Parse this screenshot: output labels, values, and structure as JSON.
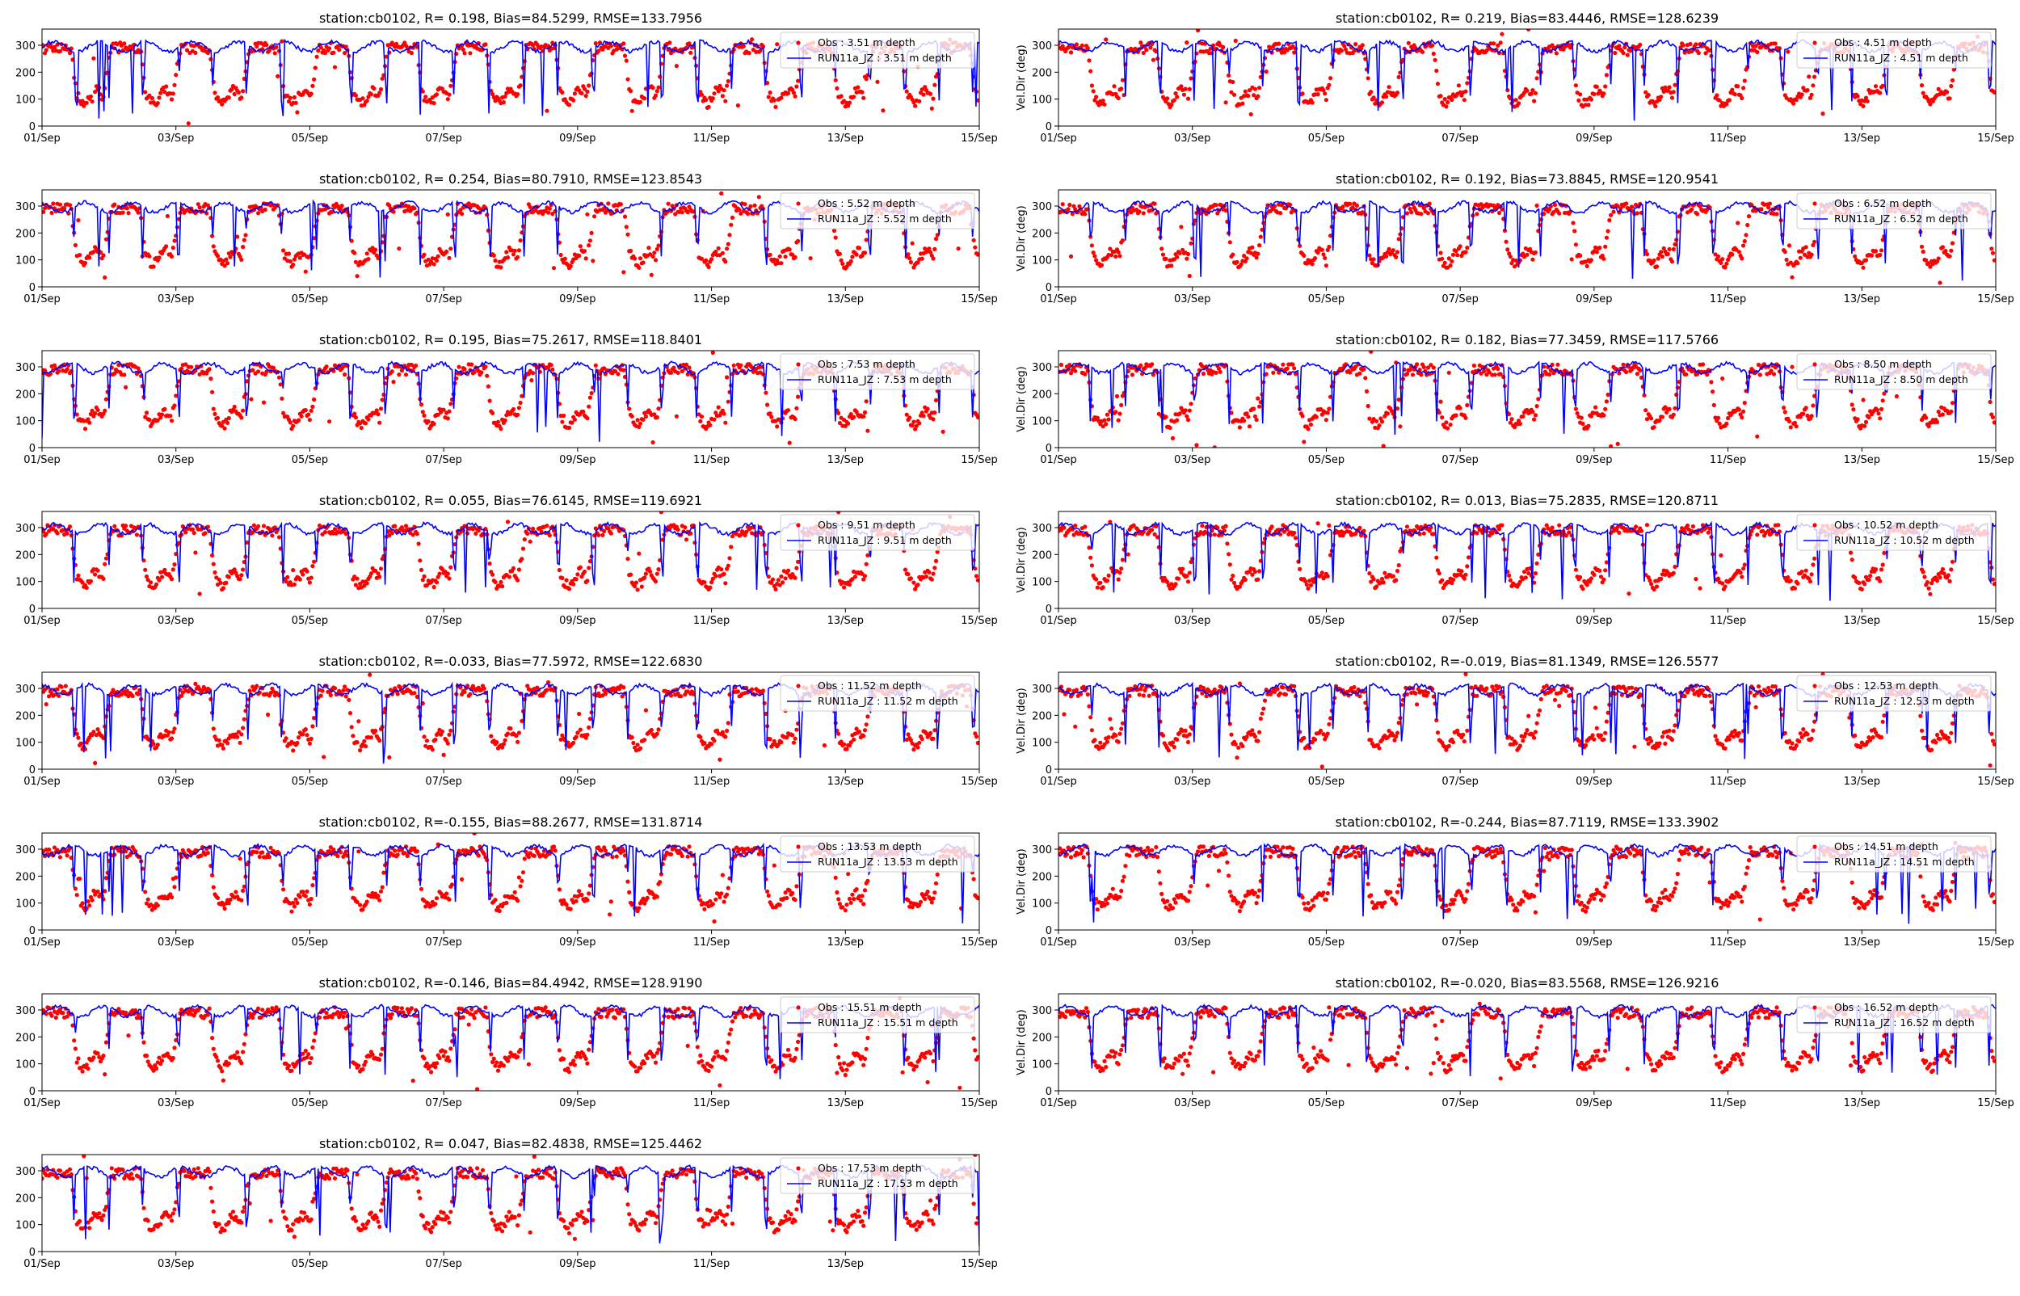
{
  "figure": {
    "station": "cb0102",
    "x_tick_labels": [
      "01/Sep",
      "03/Sep",
      "05/Sep",
      "07/Sep",
      "09/Sep",
      "11/Sep",
      "13/Sep",
      "15/Sep"
    ],
    "colors": {
      "obs": "#ff0000",
      "model": "#0000ff"
    }
  },
  "chart_data": [
    {
      "type": "scatter",
      "title": "station:cb0102, R= 0.198, Bias=84.5299, RMSE=133.7956",
      "ylabel": "",
      "xlim": [
        "01/Sep",
        "15/Sep"
      ],
      "ylim": [
        0,
        360
      ],
      "yticks": [
        0,
        100,
        200,
        300
      ],
      "legend": "top-right",
      "series": [
        {
          "name": "Obs : 3.51 m depth",
          "style": "points"
        },
        {
          "name": "RUN11a_JZ : 3.51 m depth",
          "style": "line"
        }
      ]
    },
    {
      "type": "scatter",
      "title": "station:cb0102, R= 0.219, Bias=83.4446, RMSE=128.6239",
      "ylabel": "Vel.Dir (deg)",
      "xlim": [
        "01/Sep",
        "15/Sep"
      ],
      "ylim": [
        0,
        360
      ],
      "yticks": [
        0,
        100,
        200,
        300
      ],
      "legend": "top-right",
      "series": [
        {
          "name": "Obs : 4.51 m depth",
          "style": "points"
        },
        {
          "name": "RUN11a_JZ : 4.51 m depth",
          "style": "line"
        }
      ]
    },
    {
      "type": "scatter",
      "title": "station:cb0102, R= 0.254, Bias=80.7910, RMSE=123.8543",
      "ylabel": "",
      "xlim": [
        "01/Sep",
        "15/Sep"
      ],
      "ylim": [
        0,
        360
      ],
      "yticks": [
        0,
        100,
        200,
        300
      ],
      "legend": "top-right",
      "series": [
        {
          "name": "Obs : 5.52 m depth",
          "style": "points"
        },
        {
          "name": "RUN11a_JZ : 5.52 m depth",
          "style": "line"
        }
      ]
    },
    {
      "type": "scatter",
      "title": "station:cb0102, R= 0.192, Bias=73.8845, RMSE=120.9541",
      "ylabel": "Vel.Dir (deg)",
      "xlim": [
        "01/Sep",
        "15/Sep"
      ],
      "ylim": [
        0,
        360
      ],
      "yticks": [
        0,
        100,
        200,
        300
      ],
      "legend": "top-right",
      "series": [
        {
          "name": "Obs : 6.52 m depth",
          "style": "points"
        },
        {
          "name": "RUN11a_JZ : 6.52 m depth",
          "style": "line"
        }
      ]
    },
    {
      "type": "scatter",
      "title": "station:cb0102, R= 0.195, Bias=75.2617, RMSE=118.8401",
      "ylabel": "",
      "xlim": [
        "01/Sep",
        "15/Sep"
      ],
      "ylim": [
        0,
        360
      ],
      "yticks": [
        0,
        100,
        200,
        300
      ],
      "legend": "top-right",
      "series": [
        {
          "name": "Obs : 7.53 m depth",
          "style": "points"
        },
        {
          "name": "RUN11a_JZ : 7.53 m depth",
          "style": "line"
        }
      ]
    },
    {
      "type": "scatter",
      "title": "station:cb0102, R= 0.182, Bias=77.3459, RMSE=117.5766",
      "ylabel": "Vel.Dir (deg)",
      "xlim": [
        "01/Sep",
        "15/Sep"
      ],
      "ylim": [
        0,
        360
      ],
      "yticks": [
        0,
        100,
        200,
        300
      ],
      "legend": "top-right",
      "series": [
        {
          "name": "Obs : 8.50 m depth",
          "style": "points"
        },
        {
          "name": "RUN11a_JZ : 8.50 m depth",
          "style": "line"
        }
      ]
    },
    {
      "type": "scatter",
      "title": "station:cb0102, R= 0.055, Bias=76.6145, RMSE=119.6921",
      "ylabel": "",
      "xlim": [
        "01/Sep",
        "15/Sep"
      ],
      "ylim": [
        0,
        360
      ],
      "yticks": [
        0,
        100,
        200,
        300
      ],
      "legend": "top-right",
      "series": [
        {
          "name": "Obs : 9.51 m depth",
          "style": "points"
        },
        {
          "name": "RUN11a_JZ : 9.51 m depth",
          "style": "line"
        }
      ]
    },
    {
      "type": "scatter",
      "title": "station:cb0102, R= 0.013, Bias=75.2835, RMSE=120.8711",
      "ylabel": "Vel.Dir (deg)",
      "xlim": [
        "01/Sep",
        "15/Sep"
      ],
      "ylim": [
        0,
        360
      ],
      "yticks": [
        0,
        100,
        200,
        300
      ],
      "legend": "top-right",
      "series": [
        {
          "name": "Obs : 10.52 m depth",
          "style": "points"
        },
        {
          "name": "RUN11a_JZ : 10.52 m depth",
          "style": "line"
        }
      ]
    },
    {
      "type": "scatter",
      "title": "station:cb0102, R=-0.033, Bias=77.5972, RMSE=122.6830",
      "ylabel": "",
      "xlim": [
        "01/Sep",
        "15/Sep"
      ],
      "ylim": [
        0,
        360
      ],
      "yticks": [
        0,
        100,
        200,
        300
      ],
      "legend": "top-right",
      "series": [
        {
          "name": "Obs : 11.52 m depth",
          "style": "points"
        },
        {
          "name": "RUN11a_JZ : 11.52 m depth",
          "style": "line"
        }
      ]
    },
    {
      "type": "scatter",
      "title": "station:cb0102, R=-0.019, Bias=81.1349, RMSE=126.5577",
      "ylabel": "Vel.Dir (deg)",
      "xlim": [
        "01/Sep",
        "15/Sep"
      ],
      "ylim": [
        0,
        360
      ],
      "yticks": [
        0,
        100,
        200,
        300
      ],
      "legend": "top-right",
      "series": [
        {
          "name": "Obs : 12.53 m depth",
          "style": "points"
        },
        {
          "name": "RUN11a_JZ : 12.53 m depth",
          "style": "line"
        }
      ]
    },
    {
      "type": "scatter",
      "title": "station:cb0102, R=-0.155, Bias=88.2677, RMSE=131.8714",
      "ylabel": "",
      "xlim": [
        "01/Sep",
        "15/Sep"
      ],
      "ylim": [
        0,
        360
      ],
      "yticks": [
        0,
        100,
        200,
        300
      ],
      "legend": "top-right",
      "series": [
        {
          "name": "Obs : 13.53 m depth",
          "style": "points"
        },
        {
          "name": "RUN11a_JZ : 13.53 m depth",
          "style": "line"
        }
      ]
    },
    {
      "type": "scatter",
      "title": "station:cb0102, R=-0.244, Bias=87.7119, RMSE=133.3902",
      "ylabel": "Vel.Dir (deg)",
      "xlim": [
        "01/Sep",
        "15/Sep"
      ],
      "ylim": [
        0,
        360
      ],
      "yticks": [
        0,
        100,
        200,
        300
      ],
      "legend": "top-right",
      "series": [
        {
          "name": "Obs : 14.51 m depth",
          "style": "points"
        },
        {
          "name": "RUN11a_JZ : 14.51 m depth",
          "style": "line"
        }
      ]
    },
    {
      "type": "scatter",
      "title": "station:cb0102, R=-0.146, Bias=84.4942, RMSE=128.9190",
      "ylabel": "",
      "xlim": [
        "01/Sep",
        "15/Sep"
      ],
      "ylim": [
        0,
        360
      ],
      "yticks": [
        0,
        100,
        200,
        300
      ],
      "legend": "top-right",
      "series": [
        {
          "name": "Obs : 15.51 m depth",
          "style": "points"
        },
        {
          "name": "RUN11a_JZ : 15.51 m depth",
          "style": "line"
        }
      ]
    },
    {
      "type": "scatter",
      "title": "station:cb0102, R=-0.020, Bias=83.5568, RMSE=126.9216",
      "ylabel": "Vel.Dir (deg)",
      "xlim": [
        "01/Sep",
        "15/Sep"
      ],
      "ylim": [
        0,
        360
      ],
      "yticks": [
        0,
        100,
        200,
        300
      ],
      "legend": "top-right",
      "series": [
        {
          "name": "Obs : 16.52 m depth",
          "style": "points"
        },
        {
          "name": "RUN11a_JZ : 16.52 m depth",
          "style": "line"
        }
      ]
    },
    {
      "type": "scatter",
      "title": "station:cb0102, R= 0.047, Bias=82.4838, RMSE=125.4462",
      "ylabel": "",
      "xlim": [
        "01/Sep",
        "15/Sep"
      ],
      "ylim": [
        0,
        360
      ],
      "yticks": [
        0,
        100,
        200,
        300
      ],
      "legend": "top-right",
      "series": [
        {
          "name": "Obs : 17.53 m depth",
          "style": "points"
        },
        {
          "name": "RUN11a_JZ : 17.53 m depth",
          "style": "line"
        }
      ]
    }
  ]
}
